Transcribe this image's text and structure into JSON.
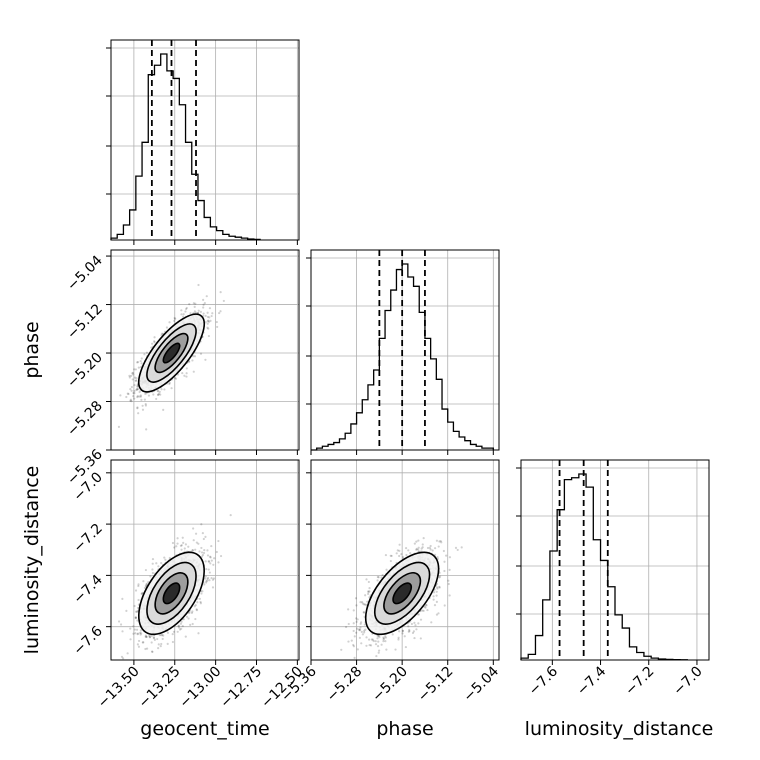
{
  "chart_data": {
    "type": "corner",
    "parameters": [
      {
        "name": "geocent_time",
        "axis_label": "geocent_time",
        "range": [
          -13.64,
          -12.49
        ],
        "ticks": [
          -13.5,
          -13.25,
          -13.0,
          -12.75,
          -12.5
        ],
        "tick_labels": [
          "−13.50",
          "−13.25",
          "−13.00",
          "−12.75",
          "−12.50"
        ],
        "median": -13.27,
        "quantiles": [
          -13.39,
          -13.12
        ]
      },
      {
        "name": "phase",
        "axis_label": "phase",
        "range": [
          -5.36,
          -5.03
        ],
        "ticks": [
          -5.36,
          -5.28,
          -5.2,
          -5.12,
          -5.04
        ],
        "tick_labels": [
          "−5.36",
          "−5.28",
          "−5.20",
          "−5.12",
          "−5.04"
        ],
        "median": -5.2,
        "quantiles": [
          -5.24,
          -5.16
        ]
      },
      {
        "name": "luminosity_distance",
        "axis_label": "luminosity_distance",
        "range": [
          -7.73,
          -6.95
        ],
        "ticks": [
          -7.6,
          -7.4,
          -7.2,
          -7.0
        ],
        "tick_labels": [
          "−7.6",
          "−7.4",
          "−7.2",
          "−7.0"
        ],
        "median": -7.47,
        "quantiles": [
          -7.57,
          -7.37
        ]
      }
    ],
    "histograms": [
      {
        "parameter": "geocent_time",
        "bin_edges": [
          -13.64,
          -13.602,
          -13.564,
          -13.526,
          -13.488,
          -13.45,
          -13.412,
          -13.374,
          -13.336,
          -13.298,
          -13.26,
          -13.222,
          -13.184,
          -13.146,
          -13.108,
          -13.07,
          -13.032,
          -12.994,
          -12.956,
          -12.918,
          -12.88,
          -12.842,
          -12.804,
          -12.766,
          -12.728
        ],
        "counts": [
          0.01,
          0.03,
          0.08,
          0.16,
          0.34,
          0.52,
          0.88,
          0.93,
          0.99,
          0.9,
          0.86,
          0.72,
          0.52,
          0.35,
          0.21,
          0.12,
          0.07,
          0.05,
          0.03,
          0.02,
          0.015,
          0.01,
          0.005,
          0.003
        ]
      },
      {
        "parameter": "phase",
        "bin_edges": [
          -5.36,
          -5.35,
          -5.34,
          -5.33,
          -5.32,
          -5.31,
          -5.3,
          -5.29,
          -5.28,
          -5.27,
          -5.26,
          -5.25,
          -5.24,
          -5.23,
          -5.22,
          -5.21,
          -5.2,
          -5.19,
          -5.18,
          -5.17,
          -5.16,
          -5.15,
          -5.14,
          -5.13,
          -5.12,
          -5.11,
          -5.1,
          -5.09,
          -5.08,
          -5.07,
          -5.06,
          -5.05,
          -5.04
        ],
        "counts": [
          0.0,
          0.01,
          0.02,
          0.03,
          0.04,
          0.06,
          0.09,
          0.14,
          0.2,
          0.27,
          0.35,
          0.43,
          0.6,
          0.75,
          0.86,
          0.97,
          1.0,
          0.93,
          0.88,
          0.74,
          0.6,
          0.49,
          0.38,
          0.22,
          0.15,
          0.1,
          0.07,
          0.05,
          0.03,
          0.02,
          0.01,
          0.01
        ]
      },
      {
        "parameter": "luminosity_distance",
        "bin_edges": [
          -7.73,
          -7.7,
          -7.67,
          -7.64,
          -7.61,
          -7.58,
          -7.55,
          -7.52,
          -7.49,
          -7.46,
          -7.43,
          -7.4,
          -7.37,
          -7.34,
          -7.31,
          -7.28,
          -7.25,
          -7.22,
          -7.19,
          -7.16,
          -7.13,
          -7.1,
          -7.07,
          -7.04
        ],
        "counts": [
          0.01,
          0.03,
          0.13,
          0.32,
          0.58,
          0.8,
          0.96,
          0.97,
          0.99,
          0.92,
          0.64,
          0.53,
          0.39,
          0.24,
          0.17,
          0.07,
          0.04,
          0.02,
          0.01,
          0.005,
          0.003,
          0.002,
          0.001
        ]
      }
    ],
    "pairs": [
      {
        "x": "geocent_time",
        "y": "phase",
        "center": [
          -13.27,
          -5.2
        ],
        "sigma": [
          0.1,
          0.032
        ],
        "rho": 0.75
      },
      {
        "x": "geocent_time",
        "y": "luminosity_distance",
        "center": [
          -13.27,
          -7.47
        ],
        "sigma": [
          0.1,
          0.08
        ],
        "rho": 0.55
      },
      {
        "x": "phase",
        "y": "luminosity_distance",
        "center": [
          -5.2,
          -7.47
        ],
        "sigma": [
          0.032,
          0.08
        ],
        "rho": 0.6
      }
    ],
    "contour_levels_sigma": [
      0.5,
      1.0,
      1.5,
      2.0
    ],
    "grid": true
  }
}
